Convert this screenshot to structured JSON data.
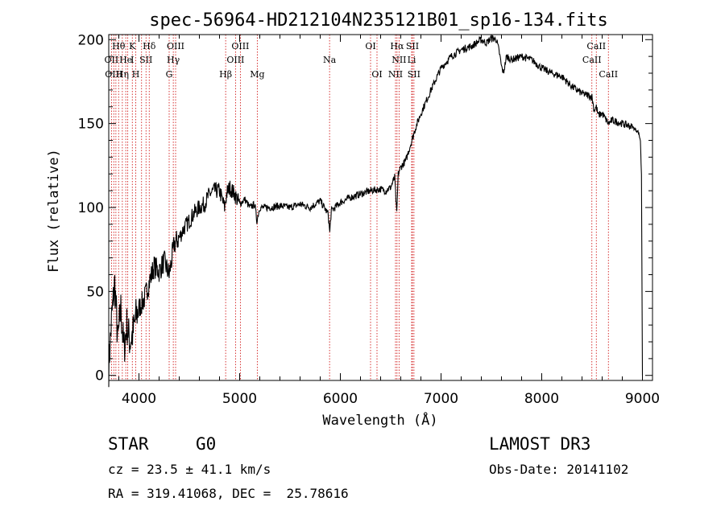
{
  "chart_data": {
    "type": "line",
    "title": "spec-56964-HD212104N235121B01_sp16-134.fits",
    "xlabel": "Wavelength (Å)",
    "ylabel": "Flux (relative)",
    "xlim": [
      3700,
      9100
    ],
    "ylim": [
      -3,
      203
    ],
    "x_ticks": [
      4000,
      5000,
      6000,
      7000,
      8000,
      9000
    ],
    "y_ticks": [
      0,
      50,
      100,
      150,
      200
    ],
    "series": [
      {
        "name": "spectrum",
        "x": [
          3700,
          3730,
          3760,
          3790,
          3820,
          3850,
          3880,
          3910,
          3940,
          3970,
          4000,
          4050,
          4100,
          4150,
          4200,
          4250,
          4300,
          4350,
          4400,
          4450,
          4500,
          4550,
          4600,
          4650,
          4700,
          4750,
          4800,
          4850,
          4870,
          4900,
          4950,
          5000,
          5050,
          5100,
          5150,
          5170,
          5200,
          5300,
          5400,
          5500,
          5600,
          5700,
          5800,
          5880,
          5895,
          5910,
          6000,
          6100,
          6200,
          6300,
          6400,
          6450,
          6500,
          6540,
          6560,
          6575,
          6600,
          6650,
          6700,
          6750,
          6800,
          6900,
          7000,
          7100,
          7200,
          7300,
          7400,
          7450,
          7500,
          7550,
          7580,
          7600,
          7620,
          7650,
          7700,
          7800,
          7900,
          8000,
          8100,
          8200,
          8300,
          8400,
          8498,
          8520,
          8542,
          8560,
          8600,
          8662,
          8700,
          8800,
          8900,
          8960,
          8980,
          8990,
          9000
        ],
        "y": [
          5,
          35,
          55,
          20,
          40,
          15,
          30,
          20,
          25,
          35,
          40,
          45,
          55,
          65,
          62,
          68,
          60,
          78,
          82,
          88,
          92,
          97,
          100,
          102,
          108,
          110,
          110,
          100,
          108,
          112,
          108,
          102,
          105,
          100,
          102,
          92,
          100,
          100,
          101,
          100,
          102,
          100,
          104,
          96,
          85,
          98,
          103,
          106,
          108,
          110,
          111,
          110,
          112,
          118,
          96,
          120,
          124,
          128,
          138,
          148,
          156,
          170,
          183,
          190,
          194,
          196,
          200,
          198,
          201,
          200,
          192,
          184,
          180,
          190,
          188,
          190,
          188,
          183,
          180,
          178,
          172,
          168,
          166,
          158,
          160,
          155,
          156,
          150,
          152,
          150,
          148,
          145,
          140,
          120,
          0
        ],
        "color": "#000000"
      }
    ],
    "reference_lines": {
      "color": "#cc0000",
      "wavelengths": [
        3727,
        3750,
        3771,
        3798,
        3835,
        3869,
        3889,
        3934,
        3968,
        4026,
        4070,
        4102,
        4300,
        4341,
        4364,
        4861,
        4959,
        5007,
        5175,
        5893,
        6300,
        6364,
        6548,
        6563,
        6583,
        6708,
        6716,
        6731,
        8498,
        8542,
        8662
      ]
    },
    "annotations": [
      {
        "text": "Hθ",
        "x": 3798,
        "row": 1
      },
      {
        "text": "K",
        "x": 3934,
        "row": 1
      },
      {
        "text": "Hδ",
        "x": 4102,
        "row": 1
      },
      {
        "text": "OIII",
        "x": 4364,
        "row": 1
      },
      {
        "text": "OIII",
        "x": 5007,
        "row": 1
      },
      {
        "text": "OI",
        "x": 6300,
        "row": 1
      },
      {
        "text": "Hα",
        "x": 6563,
        "row": 1
      },
      {
        "text": "SII",
        "x": 6716,
        "row": 1
      },
      {
        "text": "CaII",
        "x": 8542,
        "row": 1
      },
      {
        "text": "OII",
        "x": 3727,
        "row": 2
      },
      {
        "text": "He",
        "x": 3869,
        "row": 2
      },
      {
        "text": "I",
        "x": 3934,
        "row": 2
      },
      {
        "text": "SII",
        "x": 4070,
        "row": 2
      },
      {
        "text": "Hγ",
        "x": 4341,
        "row": 2
      },
      {
        "text": "OIII",
        "x": 4959,
        "row": 2
      },
      {
        "text": "Na",
        "x": 5893,
        "row": 2
      },
      {
        "text": "NII",
        "x": 6583,
        "row": 2
      },
      {
        "text": "Li",
        "x": 6708,
        "row": 2
      },
      {
        "text": "CaII",
        "x": 8498,
        "row": 2
      },
      {
        "text": "OIII",
        "x": 3750,
        "row": 3
      },
      {
        "text": "Hη",
        "x": 3835,
        "row": 3
      },
      {
        "text": "H",
        "x": 3968,
        "row": 3
      },
      {
        "text": "G",
        "x": 4300,
        "row": 3
      },
      {
        "text": "Hβ",
        "x": 4861,
        "row": 3
      },
      {
        "text": "Mg",
        "x": 5175,
        "row": 3
      },
      {
        "text": "OI",
        "x": 6364,
        "row": 3
      },
      {
        "text": "NII",
        "x": 6548,
        "row": 3
      },
      {
        "text": "SII",
        "x": 6731,
        "row": 3
      },
      {
        "text": "CaII",
        "x": 8662,
        "row": 3
      }
    ]
  },
  "info": {
    "object_class": "STAR",
    "subclass": "G0",
    "survey": "LAMOST DR3",
    "redshift": "cz = 23.5 ± 41.1 km/s",
    "obs_date": "Obs-Date: 20141102",
    "coords": "RA = 319.41068, DEC =  25.78616"
  }
}
